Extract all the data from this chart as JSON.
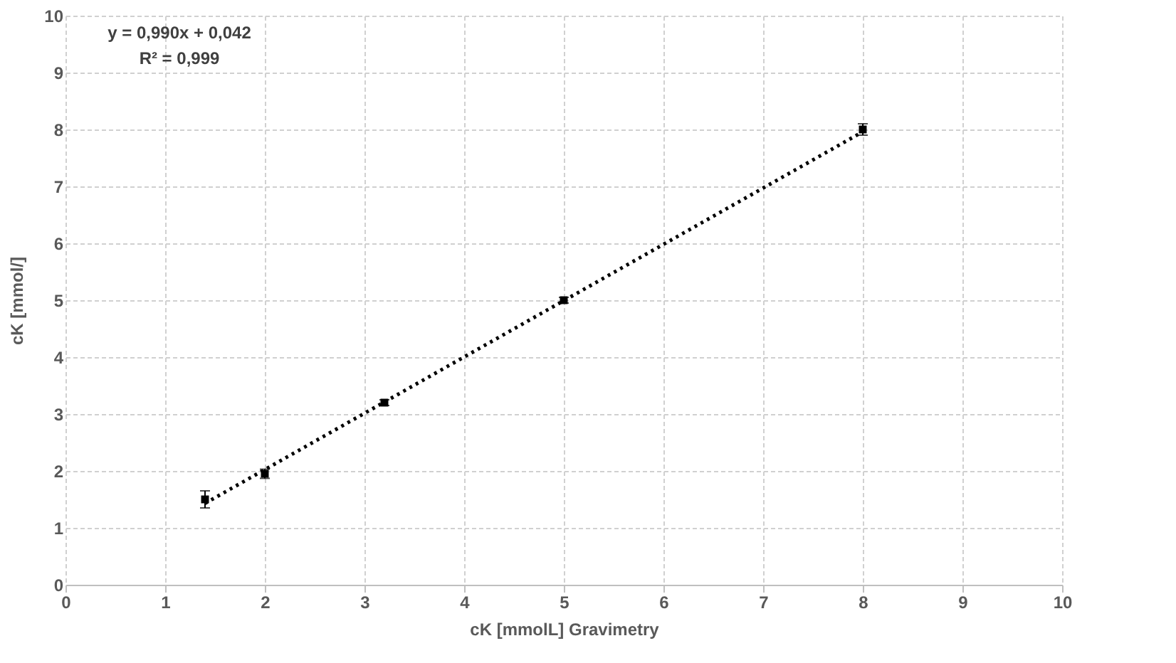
{
  "chart_data": {
    "type": "scatter",
    "xlabel": "cK [mmolL] Gravimetry",
    "ylabel": "cK [mmol/]",
    "annotations": [
      "y = 0,990x + 0,042",
      "R² = 0,999"
    ],
    "series": [
      {
        "color": "#000000",
        "x": [
          1.4,
          2,
          3.2,
          5,
          8
        ],
        "values": [
          1.5,
          1.95,
          3.2,
          5.0,
          8.0
        ],
        "errors": [
          0.15,
          0.08,
          0.05,
          0.05,
          0.1
        ],
        "marker": "square"
      },
      {
        "type": "line",
        "color": "#000000",
        "x": [
          1.4,
          8
        ],
        "values": [
          1.43,
          7.96
        ],
        "line_style": "dotted"
      }
    ],
    "xlim": [
      0,
      10
    ],
    "xticks": [
      0,
      1,
      2,
      3,
      4,
      5,
      6,
      7,
      8,
      9,
      10
    ],
    "ylim": [
      0,
      10
    ],
    "yticks": [
      0,
      1,
      2,
      3,
      4,
      5,
      6,
      7,
      8,
      9,
      10
    ],
    "grid": true
  }
}
